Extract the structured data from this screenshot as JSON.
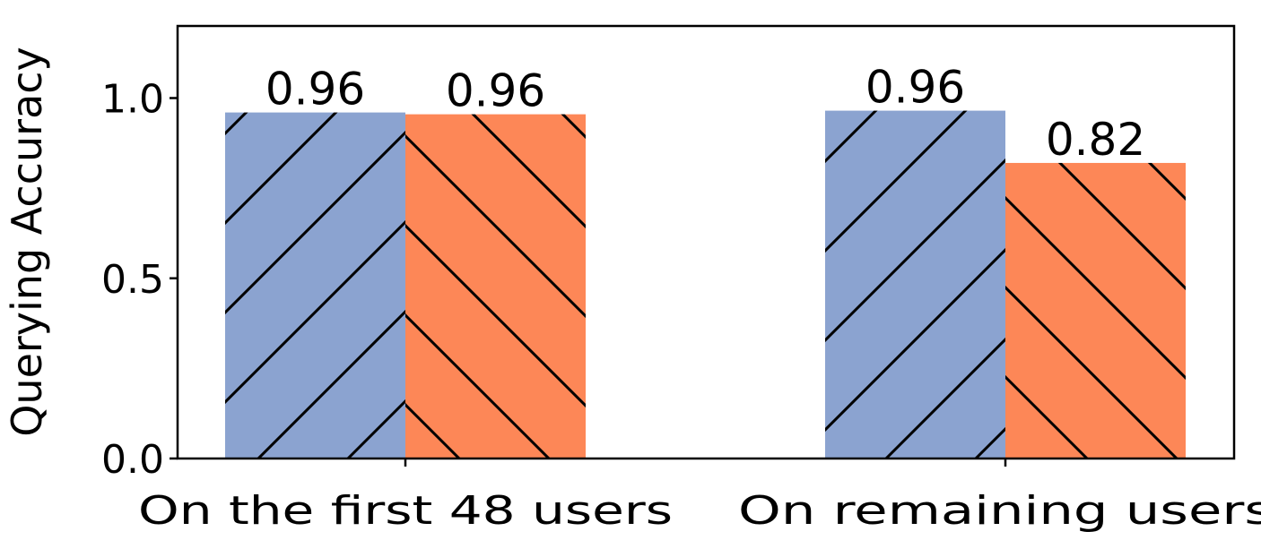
{
  "chart_data": {
    "type": "bar",
    "categories": [
      "On the first 48 users",
      "On remaining users"
    ],
    "series": [
      {
        "values": [
          0.96,
          0.965
        ],
        "color": "#8ba3d0",
        "hatch": "/"
      },
      {
        "values": [
          0.955,
          0.82
        ],
        "color": "#fd8757",
        "hatch": "\\"
      }
    ],
    "data_labels": [
      [
        "0.96",
        "0.96"
      ],
      [
        "0.96",
        "0.82"
      ]
    ],
    "ylabel": "Querying Accuracy",
    "xlabel": "",
    "title": "",
    "ylim": [
      0,
      1.2
    ],
    "yticks": [
      0.0,
      0.5,
      1.0
    ],
    "ytick_labels": [
      "0.0",
      "0.5",
      "1.0"
    ],
    "grid": false,
    "legend": false
  }
}
